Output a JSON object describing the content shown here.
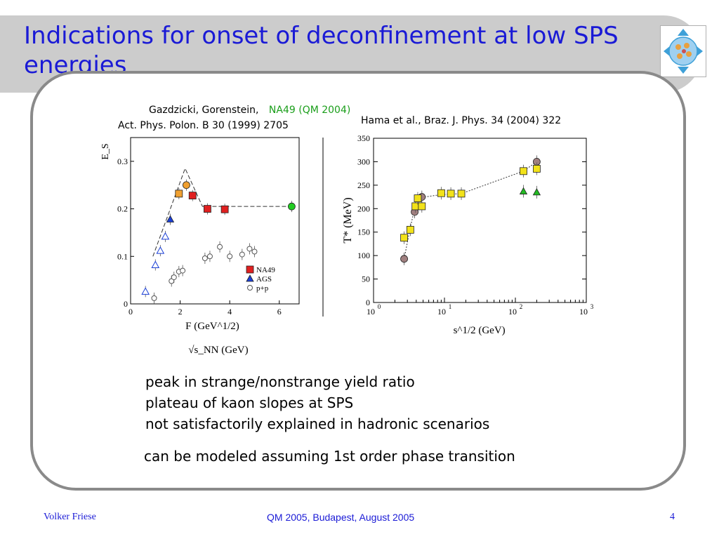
{
  "slide": {
    "title": "Indications for onset of deconfinement at low SPS energies",
    "caption_left_line1": "Gazdzicki, Gorenstein,",
    "caption_left_na49": "NA49 (QM 2004)",
    "caption_left_line2": "Act. Phys. Polon. B 30 (1999) 2705",
    "caption_right": "Hama et al., Braz. J. Phys. 34 (2004) 322",
    "bullets": [
      "peak in strange/nonstrange yield ratio",
      "plateau of kaon slopes at SPS",
      "not satisfactorily explained in hadronic scenarios"
    ],
    "conclusion": "can be modeled assuming 1st order phase transition",
    "footer": {
      "author": "Volker Friese",
      "conference": "QM 2005, Budapest, August 2005",
      "page": "4"
    },
    "colors": {
      "title": "#1a1ad6",
      "na49_label": "#1a9e1a",
      "frame": "#8a8a8a",
      "band": "#cccccc"
    }
  },
  "chart_data": [
    {
      "type": "scatter",
      "ylabel": "E_S",
      "xlabel": "F (GeV^1/2)",
      "xlabel_below": "√s_NN (GeV)",
      "xlim": [
        0,
        6.8
      ],
      "ylim": [
        0,
        0.35
      ],
      "xticks": [
        "0",
        "2",
        "4",
        "6"
      ],
      "yticks": [
        "0",
        "0.1",
        "0.2",
        "0.3"
      ],
      "legend_position": "bottom-right",
      "legend": [
        "NA49",
        "AGS",
        "p+p"
      ],
      "series": [
        {
          "name": "NA49",
          "marker": "filled-square",
          "color": "#e02020",
          "points": [
            [
              2.5,
              0.228
            ],
            [
              3.1,
              0.2
            ],
            [
              3.8,
              0.199
            ]
          ]
        },
        {
          "marker": "filled-square",
          "color": "#f0a030",
          "points": [
            [
              1.95,
              0.232
            ]
          ]
        },
        {
          "marker": "filled-circle",
          "color": "#f0a030",
          "points": [
            [
              2.25,
              0.25
            ]
          ]
        },
        {
          "name": "AGS",
          "marker": "filled-triangle",
          "color": "#1a3fd6",
          "points": [
            [
              1.6,
              0.178
            ]
          ]
        },
        {
          "marker": "open-triangle",
          "color": "#1a3fd6",
          "points": [
            [
              0.6,
              0.026
            ],
            [
              1.0,
              0.082
            ],
            [
              1.2,
              0.112
            ],
            [
              1.4,
              0.142
            ]
          ]
        },
        {
          "name": "p+p",
          "marker": "open-circle",
          "color": "#555555",
          "points": [
            [
              0.95,
              0.012
            ],
            [
              1.65,
              0.048
            ],
            [
              1.75,
              0.056
            ],
            [
              1.95,
              0.068
            ],
            [
              2.1,
              0.07
            ],
            [
              3.0,
              0.096
            ],
            [
              3.2,
              0.1
            ],
            [
              3.6,
              0.12
            ],
            [
              4.0,
              0.1
            ],
            [
              4.5,
              0.104
            ],
            [
              4.8,
              0.116
            ],
            [
              5.0,
              0.11
            ]
          ]
        },
        {
          "marker": "filled-circle",
          "color": "#22cc22",
          "points": [
            [
              6.5,
              0.205
            ]
          ]
        }
      ],
      "model_curve": {
        "style": "dashed",
        "points": [
          [
            0.9,
            0.1
          ],
          [
            2.2,
            0.285
          ],
          [
            2.9,
            0.205
          ],
          [
            6.5,
            0.205
          ]
        ]
      }
    },
    {
      "type": "scatter",
      "ylabel": "T* (MeV)",
      "xlabel": "s^1/2 (GeV)",
      "xscale": "log",
      "xlim": [
        1,
        1000
      ],
      "ylim": [
        0,
        350
      ],
      "yticks": [
        "0",
        "50",
        "100",
        "150",
        "200",
        "250",
        "300",
        "350"
      ],
      "xtick_bases": [
        "10",
        "10",
        "10",
        "10"
      ],
      "xtick_exps": [
        "0",
        "1",
        "2",
        "3"
      ],
      "series": [
        {
          "marker": "filled-circle",
          "color": "#a08080",
          "points": [
            [
              2.7,
              93
            ],
            [
              3.8,
              193
            ],
            [
              4.8,
              225
            ],
            [
              200,
              300
            ]
          ]
        },
        {
          "marker": "filled-square",
          "color": "#f2e21a",
          "points": [
            [
              2.7,
              138
            ],
            [
              3.3,
              155
            ],
            [
              3.9,
              205
            ],
            [
              4.2,
              222
            ],
            [
              4.8,
              205
            ],
            [
              9,
              233
            ],
            [
              12.3,
              232
            ],
            [
              17.3,
              232
            ],
            [
              130,
              280
            ],
            [
              200,
              285
            ]
          ]
        },
        {
          "marker": "filled-triangle",
          "color": "#22bb22",
          "points": [
            [
              130,
              237
            ],
            [
              200,
              235
            ]
          ]
        }
      ],
      "model_curve": {
        "style": "dotted",
        "points": [
          [
            2.7,
            93
          ],
          [
            3.3,
            160
          ],
          [
            3.8,
            200
          ],
          [
            4.8,
            224
          ],
          [
            9,
            230
          ],
          [
            17.3,
            232
          ],
          [
            130,
            280
          ],
          [
            200,
            300
          ]
        ]
      }
    }
  ]
}
